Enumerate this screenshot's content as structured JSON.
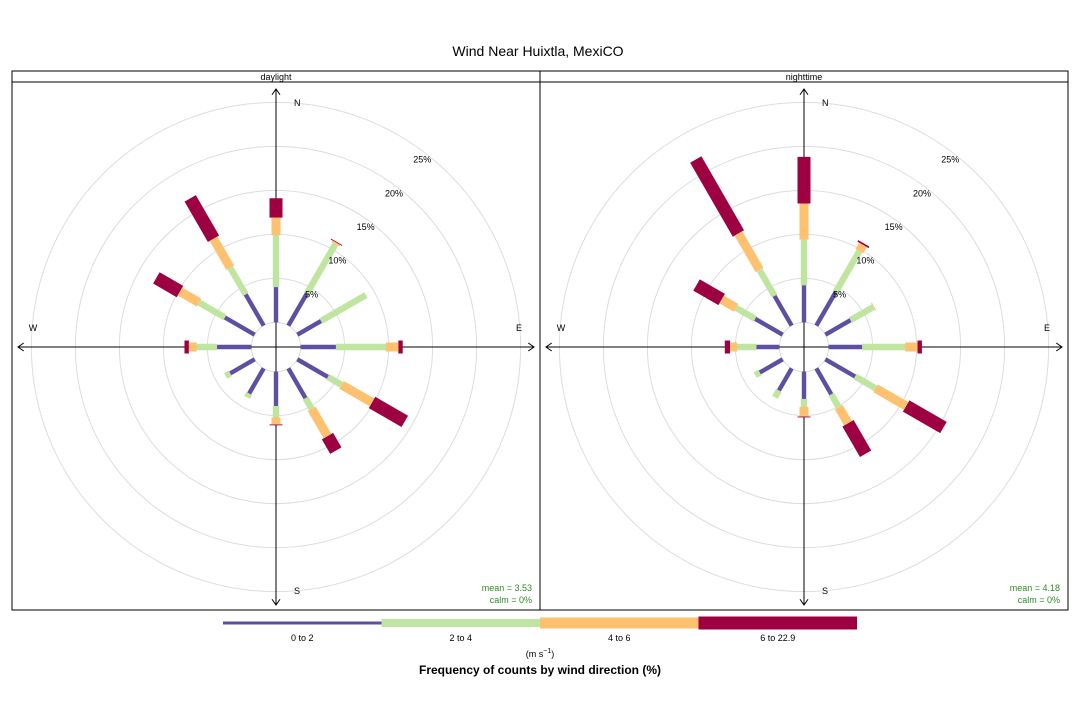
{
  "chart_data": {
    "type": "windrose",
    "title": "Wind Near Huixtla, MexiCO",
    "axis_title": "Frequency of counts by wind direction (%)",
    "units_prefix": "(m s",
    "units_exp": "−1",
    "units_suffix": ")",
    "ring_values": [
      5,
      10,
      15,
      20,
      25
    ],
    "ring_labels": [
      "5%",
      "10%",
      "15%",
      "20%",
      "25%"
    ],
    "grid": true,
    "legend_position": "bottom",
    "cardinal_labels": {
      "n": "N",
      "e": "E",
      "s": "S",
      "w": "W"
    },
    "bins": [
      {
        "label": "0 to 2",
        "color": "#5e4fa2"
      },
      {
        "label": "2 to 4",
        "color": "#bfe5a0"
      },
      {
        "label": "4 to 6",
        "color": "#fdc170"
      },
      {
        "label": "6 to 22.9",
        "color": "#9e0142"
      }
    ],
    "directions": [
      0,
      30,
      60,
      90,
      120,
      150,
      180,
      210,
      240,
      270,
      300,
      330
    ],
    "panels": [
      {
        "name": "daylight",
        "mean_label": "mean = 3.53",
        "calm_label": "calm = 0%",
        "cumulative": [
          [
            4.0,
            9.9,
            11.9,
            14.1
          ],
          [
            4.2,
            10.7,
            10.9,
            11.0
          ],
          [
            3.1,
            9.0,
            9.0,
            9.0
          ],
          [
            4.0,
            9.7,
            11.1,
            11.6
          ],
          [
            4.0,
            5.8,
            9.8,
            14.1
          ],
          [
            3.9,
            5.3,
            8.9,
            10.8
          ],
          [
            3.9,
            5.2,
            6.0,
            6.1
          ],
          [
            3.3,
            3.8,
            3.8,
            3.8
          ],
          [
            3.2,
            3.8,
            3.8,
            3.8
          ],
          [
            3.9,
            6.2,
            7.1,
            7.6
          ],
          [
            3.9,
            7.3,
            9.8,
            12.9
          ],
          [
            4.1,
            7.6,
            11.4,
            16.7
          ]
        ]
      },
      {
        "name": "nighttime",
        "mean_label": "mean = 4.18",
        "calm_label": "calm = 0%",
        "cumulative": [
          [
            4.2,
            9.4,
            13.5,
            18.8
          ],
          [
            4.4,
            9.8,
            10.6,
            10.8
          ],
          [
            3.3,
            6.3,
            6.4,
            6.4
          ],
          [
            3.8,
            8.7,
            10.1,
            10.6
          ],
          [
            3.9,
            6.6,
            10.6,
            15.5
          ],
          [
            3.4,
            5.1,
            7.2,
            11.2
          ],
          [
            3.1,
            4.0,
            5.1,
            5.2
          ],
          [
            2.9,
            3.8,
            3.8,
            3.8
          ],
          [
            3.0,
            3.6,
            3.6,
            3.6
          ],
          [
            2.6,
            4.8,
            5.6,
            6.2
          ],
          [
            3.6,
            6.1,
            8.0,
            11.3
          ],
          [
            3.9,
            7.3,
            12.1,
            21.8
          ]
        ]
      }
    ]
  }
}
